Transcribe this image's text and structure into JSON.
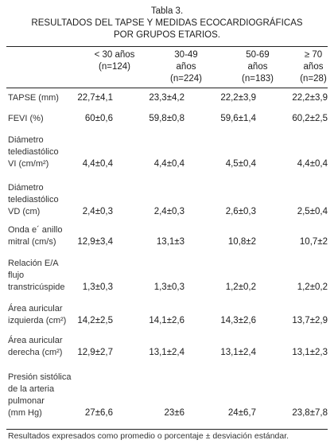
{
  "title": {
    "line1": "Tabla 3.",
    "line2": "RESULTADOS DEL TAPSE Y MEDIDAS ECOCARDIOGRÁFICAS",
    "line3": "POR GRUPOS ETARIOS."
  },
  "columns": [
    {
      "line1": "< 30 años",
      "line2": "(n=124)"
    },
    {
      "line1": "30-49",
      "line2": "años",
      "line3": "(n=224)"
    },
    {
      "line1": "50-69",
      "line2": "años",
      "line3": "(n=183)"
    },
    {
      "line1": "≥ 70",
      "line2": "años",
      "line3": "(n=28)"
    }
  ],
  "rows": [
    {
      "label": [
        "TAPSE (mm)"
      ],
      "values": [
        "22,7±4,1",
        "23,3±4,2",
        "22,2±3,9",
        "22,2±3,9"
      ]
    },
    {
      "label": [
        "FEVI (%)"
      ],
      "values": [
        "60±0,6",
        "59,8±0,8",
        "59,6±1,4",
        "60,2±2,5"
      ]
    },
    {
      "label": [
        "Diámetro",
        "telediastólico",
        "VI (cm/m²)"
      ],
      "values": [
        "4,4±0,4",
        "4,4±0,4",
        "4,5±0,4",
        "4,4±0,4"
      ]
    },
    {
      "label": [
        "Diámetro",
        "telediastólico",
        "VD (cm)"
      ],
      "values": [
        "2,4±0,3",
        "2,4±0,3",
        "2,6±0,3",
        "2,5±0,4"
      ]
    },
    {
      "label": [
        "Onda e´ anillo",
        "mitral (cm/s)"
      ],
      "values": [
        "12,9±3,4",
        "13,1±3",
        "10,8±2",
        "10,7±2"
      ]
    },
    {
      "label": [
        "Relación E/A",
        "flujo",
        "transtricúspide"
      ],
      "values": [
        "1,3±0,3",
        "1,3±0,3",
        "1,2±0,2",
        "1,2±0,2"
      ]
    },
    {
      "label": [
        "Área auricular",
        "izquierda (cm²)"
      ],
      "values": [
        "14,2±2,5",
        "14,1±2,6",
        "14,3±2,6",
        "13,7±2,9"
      ]
    },
    {
      "label": [
        "Área auricular",
        "derecha (cm²)"
      ],
      "values": [
        "12,9±2,7",
        "13,1±2,4",
        "13,1±2,4",
        "13,1±2,3"
      ]
    },
    {
      "label": [
        "Presión sistólica",
        "de la arteria",
        "pulmonar",
        "(mm Hg)"
      ],
      "values": [
        "27±6,6",
        "23±6",
        "24±6,7",
        "23,8±7,8"
      ]
    }
  ],
  "footnote": "Resultados expresados como promedio o porcentaje ± desviación estándar."
}
